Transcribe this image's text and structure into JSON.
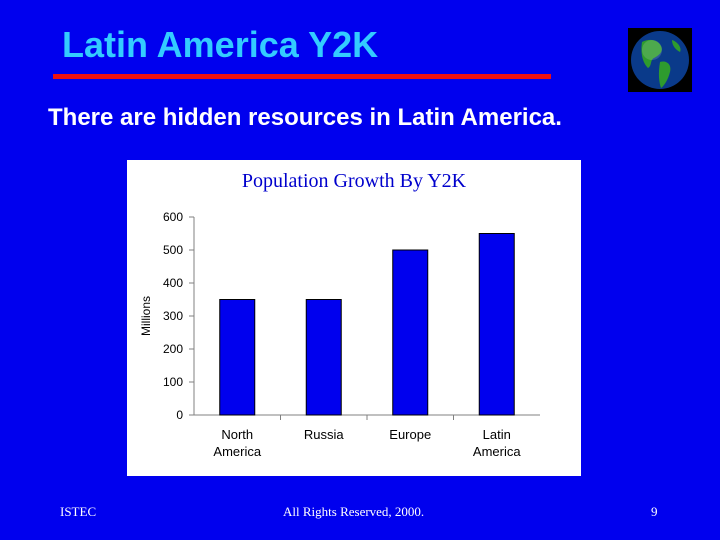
{
  "slide": {
    "title": "Latin America Y2K",
    "subtitle": "There are hidden resources in Latin America.",
    "footer_left": "ISTEC",
    "footer_center": "All Rights Reserved, 2000.",
    "page_number": "9",
    "logo_icon": "globe-icon"
  },
  "colors": {
    "background": "#0000ee",
    "title": "#33ccff",
    "rule": "#ee1111",
    "bar": "#0000ee",
    "chart_title": "#0000cc"
  },
  "chart_data": {
    "type": "bar",
    "title": "Population Growth  By Y2K",
    "xlabel": "",
    "ylabel": "Millions",
    "categories": [
      [
        "North",
        "America"
      ],
      [
        "Russia"
      ],
      [
        "Europe"
      ],
      [
        "Latin",
        "America"
      ]
    ],
    "values": [
      350,
      350,
      500,
      550
    ],
    "ylim": [
      0,
      600
    ],
    "yticks": [
      0,
      100,
      200,
      300,
      400,
      500,
      600
    ],
    "grid": false,
    "legend": "none"
  }
}
